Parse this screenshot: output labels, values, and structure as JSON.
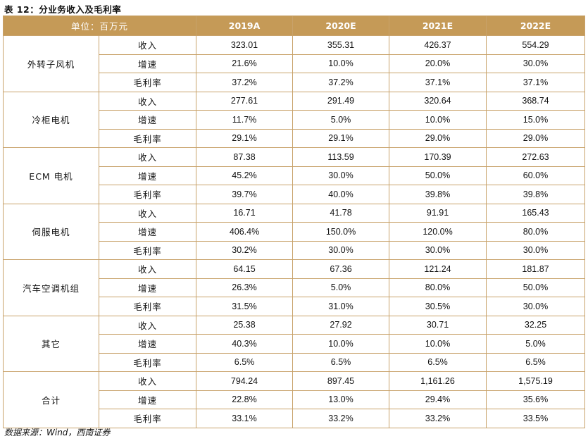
{
  "title": "表 12：分业务收入及毛利率",
  "header": {
    "unit_label": "单位：百万元",
    "years": [
      "2019A",
      "2020E",
      "2021E",
      "2022E"
    ]
  },
  "rows": [
    {
      "category": "外转子风机",
      "metrics": [
        {
          "label": "收入",
          "values": [
            "323.01",
            "355.31",
            "426.37",
            "554.29"
          ]
        },
        {
          "label": "增速",
          "values": [
            "21.6%",
            "10.0%",
            "20.0%",
            "30.0%"
          ]
        },
        {
          "label": "毛利率",
          "values": [
            "37.2%",
            "37.2%",
            "37.1%",
            "37.1%"
          ]
        }
      ]
    },
    {
      "category": "冷柜电机",
      "metrics": [
        {
          "label": "收入",
          "values": [
            "277.61",
            "291.49",
            "320.64",
            "368.74"
          ]
        },
        {
          "label": "增速",
          "values": [
            "11.7%",
            "5.0%",
            "10.0%",
            "15.0%"
          ]
        },
        {
          "label": "毛利率",
          "values": [
            "29.1%",
            "29.1%",
            "29.0%",
            "29.0%"
          ]
        }
      ]
    },
    {
      "category": "ECM 电机",
      "metrics": [
        {
          "label": "收入",
          "values": [
            "87.38",
            "113.59",
            "170.39",
            "272.63"
          ]
        },
        {
          "label": "增速",
          "values": [
            "45.2%",
            "30.0%",
            "50.0%",
            "60.0%"
          ]
        },
        {
          "label": "毛利率",
          "values": [
            "39.7%",
            "40.0%",
            "39.8%",
            "39.8%"
          ]
        }
      ]
    },
    {
      "category": "伺服电机",
      "metrics": [
        {
          "label": "收入",
          "values": [
            "16.71",
            "41.78",
            "91.91",
            "165.43"
          ]
        },
        {
          "label": "增速",
          "values": [
            "406.4%",
            "150.0%",
            "120.0%",
            "80.0%"
          ]
        },
        {
          "label": "毛利率",
          "values": [
            "30.2%",
            "30.0%",
            "30.0%",
            "30.0%"
          ]
        }
      ]
    },
    {
      "category": "汽车空调机组",
      "metrics": [
        {
          "label": "收入",
          "values": [
            "64.15",
            "67.36",
            "121.24",
            "181.87"
          ]
        },
        {
          "label": "增速",
          "values": [
            "26.3%",
            "5.0%",
            "80.0%",
            "50.0%"
          ]
        },
        {
          "label": "毛利率",
          "values": [
            "31.5%",
            "31.0%",
            "30.5%",
            "30.0%"
          ]
        }
      ]
    },
    {
      "category": "其它",
      "metrics": [
        {
          "label": "收入",
          "values": [
            "25.38",
            "27.92",
            "30.71",
            "32.25"
          ]
        },
        {
          "label": "增速",
          "values": [
            "40.3%",
            "10.0%",
            "10.0%",
            "5.0%"
          ]
        },
        {
          "label": "毛利率",
          "values": [
            "6.5%",
            "6.5%",
            "6.5%",
            "6.5%"
          ]
        }
      ]
    },
    {
      "category": "合计",
      "metrics": [
        {
          "label": "收入",
          "values": [
            "794.24",
            "897.45",
            "1,161.26",
            "1,575.19"
          ]
        },
        {
          "label": "增速",
          "values": [
            "22.8%",
            "13.0%",
            "29.4%",
            "35.6%"
          ]
        },
        {
          "label": "毛利率",
          "values": [
            "33.1%",
            "33.2%",
            "33.2%",
            "33.5%"
          ]
        }
      ]
    }
  ],
  "source": "数据来源：Wind，西南证券"
}
